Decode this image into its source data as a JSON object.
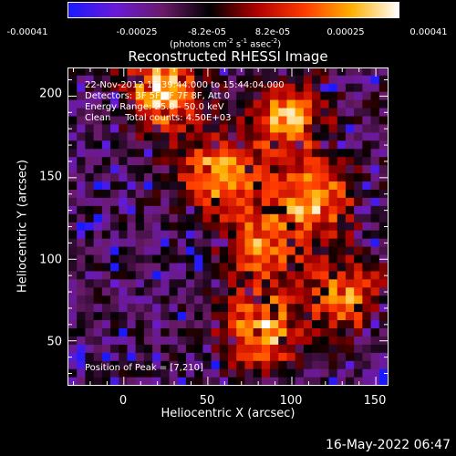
{
  "colorbar": {
    "tick_labels": [
      "-0.00041",
      "-0.00025",
      "-8.2e-05",
      "8.2e-05",
      "0.00025",
      "0.00041"
    ],
    "tick_values": [
      -0.00041,
      -0.00025,
      -8.2e-05,
      8.2e-05,
      0.00025,
      0.00041
    ],
    "range": [
      -0.00041,
      0.00041
    ],
    "units_main": "(photons cm",
    "units_exp1": "-2",
    "units_mid": " s",
    "units_exp2": "-1",
    "units_mid2": " asec",
    "units_exp3": "-2",
    "units_end": ")",
    "colors": [
      "#1a1aff",
      "#6a1ad6",
      "#6a1a6a",
      "#000000",
      "#b00000",
      "#ff3a00",
      "#ffb000",
      "#ffffff"
    ]
  },
  "info": {
    "line1": "22-Nov-2012 15:39:44.000 to 15:44:04.000",
    "line2": "Detectors: 3F 5F 6F 7F 8F, Att 0",
    "line3": "Energy Range: 25.0 - 50.0 keV",
    "line4": "Clean     Total counts: 4.50E+03",
    "peak": "Position of Peak = [7,210]"
  },
  "timestamp": "16-May-2022 06:47",
  "chart_data": {
    "type": "heatmap",
    "title": "Reconstructed RHESSI Image",
    "xlabel": "Heliocentric X (arcsec)",
    "ylabel": "Heliocentric Y (arcsec)",
    "xlim": [
      -33,
      157
    ],
    "ylim": [
      23,
      217
    ],
    "x_ticks": [
      0,
      50,
      100,
      150
    ],
    "y_ticks": [
      50,
      100,
      150,
      200
    ],
    "x_tick_labels": [
      "0",
      "50",
      "100",
      "150"
    ],
    "y_tick_labels": [
      "50",
      "100",
      "150",
      "200"
    ],
    "peak_position": [
      7,
      210
    ],
    "grid": false,
    "emission_sources": [
      {
        "name": "upper arc",
        "x": 20,
        "y": 200,
        "intensity": 0.95
      },
      {
        "name": "upper-right rim",
        "x": 95,
        "y": 185,
        "intensity": 0.8
      },
      {
        "name": "ring west",
        "x": 55,
        "y": 150,
        "intensity": 0.9
      },
      {
        "name": "ring east",
        "x": 110,
        "y": 135,
        "intensity": 0.85
      },
      {
        "name": "ring south",
        "x": 80,
        "y": 105,
        "intensity": 0.7
      },
      {
        "name": "lower band",
        "x": 80,
        "y": 55,
        "intensity": 0.9
      },
      {
        "name": "lower-right band",
        "x": 130,
        "y": 75,
        "intensity": 0.7
      }
    ]
  }
}
